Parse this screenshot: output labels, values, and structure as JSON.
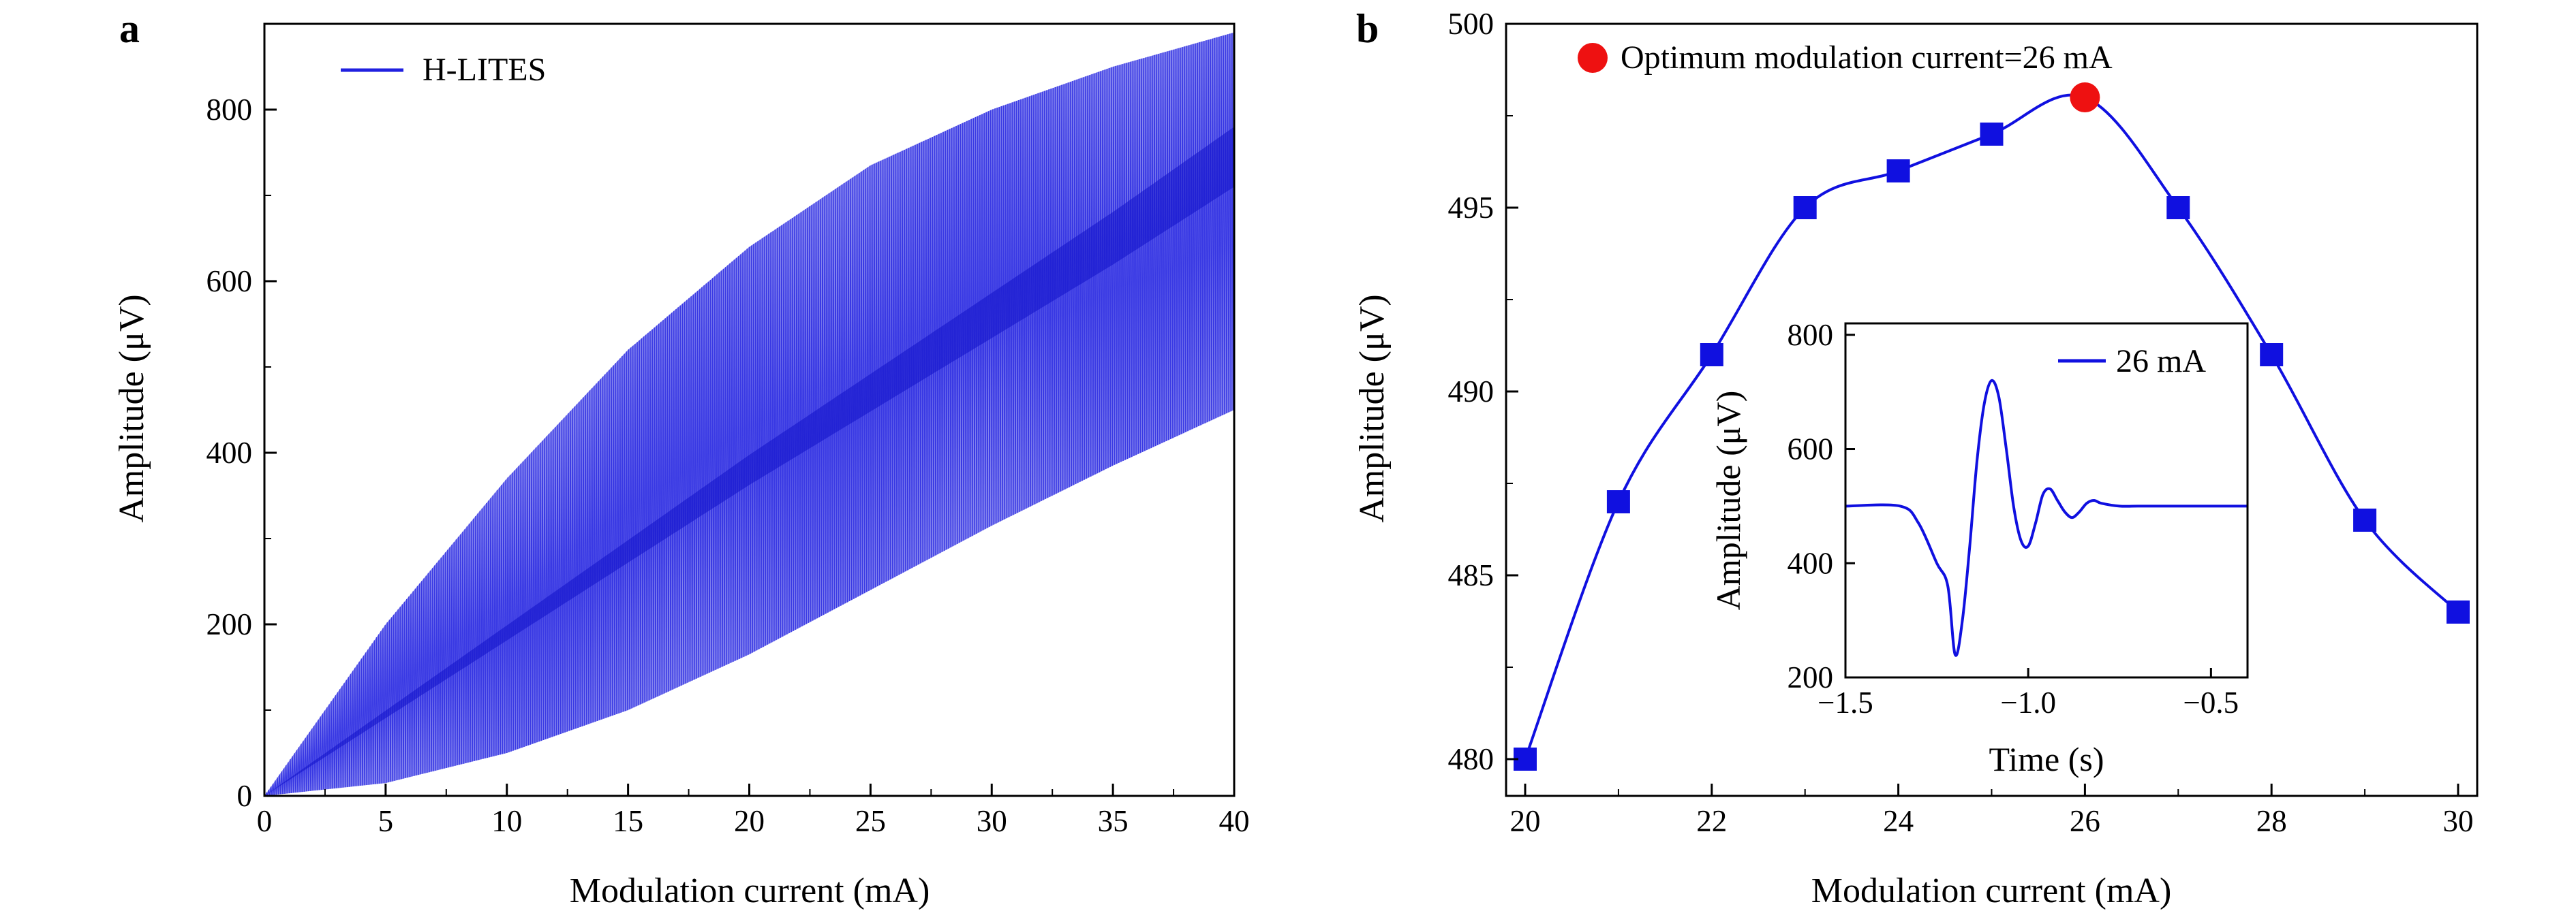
{
  "chart_data": [
    {
      "panel": "a",
      "type": "area",
      "xlabel": "Modulation current (mA)",
      "ylabel": "Amplitude (μV)",
      "xlim": [
        0,
        40
      ],
      "ylim": [
        0,
        900
      ],
      "xticks": [
        "0",
        "5",
        "10",
        "15",
        "20",
        "25",
        "30",
        "35",
        "40"
      ],
      "yticks": [
        "0",
        "200",
        "400",
        "600",
        "800"
      ],
      "legend": {
        "position": "top-left",
        "entries": [
          "H-LITES"
        ]
      },
      "color": "#2020e0",
      "series": [
        {
          "role": "upper-envelope",
          "x": [
            0,
            5,
            10,
            15,
            20,
            25,
            30,
            35,
            40
          ],
          "values": [
            0,
            200,
            370,
            520,
            640,
            735,
            800,
            850,
            890
          ]
        },
        {
          "role": "center",
          "x": [
            0,
            5,
            10,
            15,
            20,
            25,
            30,
            35,
            40
          ],
          "values": [
            0,
            95,
            190,
            285,
            380,
            470,
            560,
            650,
            745
          ]
        },
        {
          "role": "lower-envelope",
          "x": [
            0,
            5,
            10,
            15,
            20,
            25,
            30,
            35,
            40
          ],
          "values": [
            0,
            15,
            50,
            100,
            165,
            240,
            315,
            385,
            450
          ]
        }
      ],
      "grid": false
    },
    {
      "panel": "b",
      "type": "line",
      "xlabel": "Modulation current (mA)",
      "ylabel": "Amplitude (μV)",
      "xlim": [
        20,
        30
      ],
      "ylim": [
        479,
        500
      ],
      "xticks": [
        "20",
        "22",
        "24",
        "26",
        "28",
        "30"
      ],
      "yticks": [
        "480",
        "485",
        "490",
        "495",
        "500"
      ],
      "color": "#1010e0",
      "x": [
        20,
        21,
        22,
        23,
        24,
        25,
        26,
        27,
        28,
        29,
        30
      ],
      "values": [
        480,
        487,
        491,
        495,
        496,
        497,
        498,
        495,
        491,
        486.5,
        484
      ],
      "highlight": {
        "x": 26,
        "y": 498,
        "label": "Optimum modulation current=26 mA",
        "color": "#ee1111"
      },
      "grid": false,
      "inset": {
        "type": "line",
        "xlabel": "Time (s)",
        "ylabel": "Amplitude (μV)",
        "xlim": [
          -1.5,
          -0.4
        ],
        "ylim": [
          200,
          820
        ],
        "xticks": [
          "−1.5",
          "−1.0",
          "−0.5"
        ],
        "yticks": [
          "200",
          "400",
          "600",
          "800"
        ],
        "legend": {
          "position": "top-right",
          "entries": [
            "26 mA"
          ]
        },
        "x": [
          -1.5,
          -1.35,
          -1.3,
          -1.25,
          -1.22,
          -1.2,
          -1.18,
          -1.16,
          -1.14,
          -1.12,
          -1.1,
          -1.08,
          -1.06,
          -1.04,
          -1.02,
          -1.0,
          -0.98,
          -0.96,
          -0.94,
          -0.92,
          -0.9,
          -0.88,
          -0.86,
          -0.84,
          -0.82,
          -0.8,
          -0.75,
          -0.7,
          -0.6,
          -0.5,
          -0.4
        ],
        "values": [
          500,
          500,
          470,
          400,
          360,
          240,
          300,
          430,
          580,
          680,
          720,
          690,
          600,
          500,
          440,
          430,
          470,
          520,
          530,
          510,
          490,
          480,
          490,
          505,
          510,
          505,
          500,
          500,
          500,
          500,
          500
        ]
      }
    }
  ]
}
